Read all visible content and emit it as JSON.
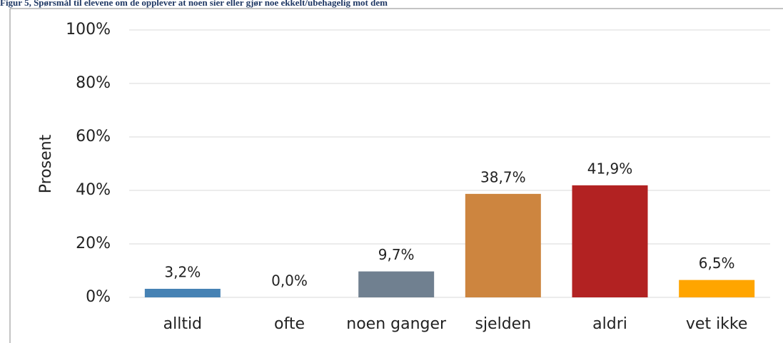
{
  "chart_data": {
    "type": "bar",
    "title": "Figur 5, Spørsmål til elevene om de opplever at noen sier eller gjør noe ekkelt/ubehagelig mot dem",
    "y_label": "Prosent",
    "categories": [
      "alltid",
      "ofte",
      "noen ganger",
      "sjelden",
      "aldri",
      "vet ikke"
    ],
    "values": [
      3.2,
      0.0,
      9.7,
      38.7,
      41.9,
      6.5
    ],
    "value_labels": [
      "3,2%",
      "0,0%",
      "9,7%",
      "38,7%",
      "41,9%",
      "6,5%"
    ],
    "colors": [
      "#4682b4",
      "#2e8b57",
      "#708090",
      "#cd853f",
      "#b22222",
      "#ffa500"
    ],
    "ylim": [
      0,
      100
    ],
    "yticks": [
      {
        "value": 0,
        "label": "0%"
      },
      {
        "value": 20,
        "label": "20%"
      },
      {
        "value": 40,
        "label": "40%"
      },
      {
        "value": 60,
        "label": "60%"
      },
      {
        "value": 80,
        "label": "80%"
      },
      {
        "value": 100,
        "label": "100%"
      }
    ],
    "grid": true
  }
}
